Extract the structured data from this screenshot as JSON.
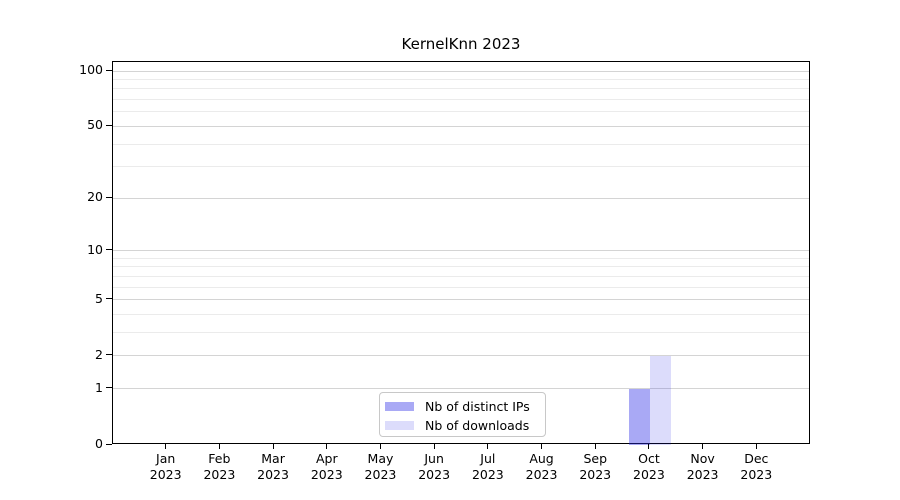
{
  "chart_data": {
    "type": "bar",
    "title": "KernelKnn 2023",
    "categories": [
      "Jan",
      "Feb",
      "Mar",
      "Apr",
      "May",
      "Jun",
      "Jul",
      "Aug",
      "Sep",
      "Oct",
      "Nov",
      "Dec"
    ],
    "category_year": "2023",
    "series": [
      {
        "name": "Nb of distinct IPs",
        "values": [
          0,
          0,
          0,
          0,
          0,
          0,
          0,
          0,
          0,
          1,
          0,
          0
        ],
        "color": "rgba(40,40,230,0.40)"
      },
      {
        "name": "Nb of downloads",
        "values": [
          0,
          0,
          0,
          0,
          0,
          0,
          0,
          0,
          0,
          2,
          0,
          0
        ],
        "color": "rgba(40,40,230,0.16)"
      }
    ],
    "xlabel": "",
    "ylabel": "",
    "y_scale": "log10(1+v)",
    "y_ticks": [
      0,
      1,
      2,
      5,
      10,
      20,
      50,
      100
    ],
    "y_minor_ticks": [
      3,
      4,
      6,
      7,
      8,
      9,
      30,
      40,
      60,
      70,
      80,
      90
    ],
    "ylim": [
      0,
      112
    ],
    "grid": "horizontal",
    "legend_position": "inside-bottom-center"
  }
}
